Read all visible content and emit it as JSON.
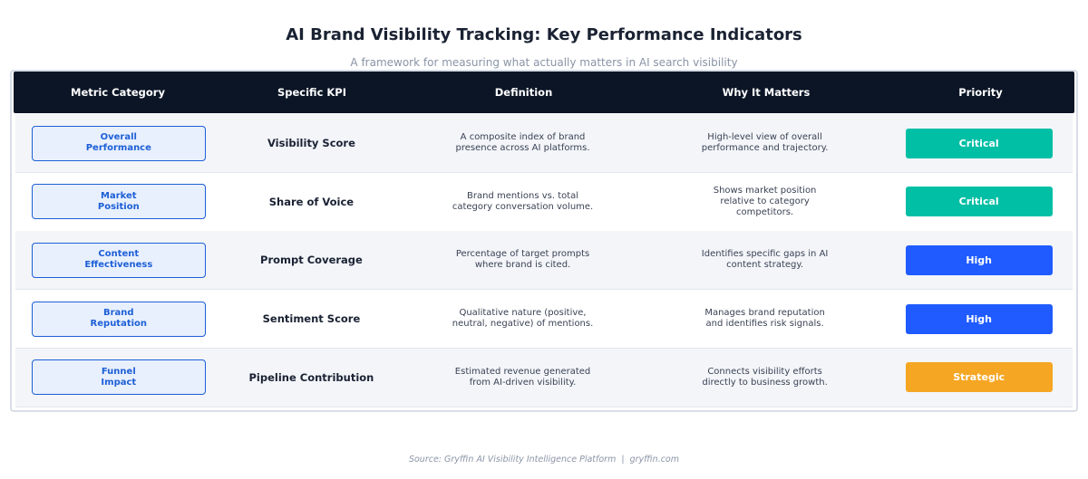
{
  "header": {
    "title": "AI Brand Visibility Tracking: Key Performance Indicators",
    "subtitle": "A framework for measuring what actually matters in AI search visibility"
  },
  "table": {
    "columns": [
      "Metric Category",
      "Specific KPI",
      "Definition",
      "Why It Matters",
      "Priority"
    ],
    "rows": [
      {
        "category": "Overall Performance",
        "kpi": "Visibility Score",
        "definition": "A composite index of brand presence across AI platforms.",
        "why": "High-level view of overall performance and trajectory.",
        "priority": "Critical",
        "color": "#00bfa5"
      },
      {
        "category": "Market Position",
        "kpi": "Share of Voice",
        "definition": "Brand mentions vs. total category conversation volume.",
        "why": "Shows market position relative to category competitors.",
        "priority": "Critical",
        "color": "#00bfa5"
      },
      {
        "category": "Content Effectiveness",
        "kpi": "Prompt Coverage",
        "definition": "Percentage of target prompts where brand is cited.",
        "why": "Identifies specific gaps in AI content strategy.",
        "priority": "High",
        "color": "#1f5bff"
      },
      {
        "category": "Brand Reputation",
        "kpi": "Sentiment Score",
        "definition": "Qualitative nature (positive, neutral, negative) of mentions.",
        "why": "Manages brand reputation and identifies risk signals.",
        "priority": "High",
        "color": "#1f5bff"
      },
      {
        "category": "Funnel Impact",
        "kpi": "Pipeline Contribution",
        "definition": "Estimated revenue generated from AI-driven visibility.",
        "why": "Connects visibility efforts directly to business growth.",
        "priority": "Strategic",
        "color": "#f5a623"
      }
    ]
  },
  "footer": {
    "source": "Source: Gryffin AI Visibility Intelligence Platform  |  gryffin.com"
  }
}
